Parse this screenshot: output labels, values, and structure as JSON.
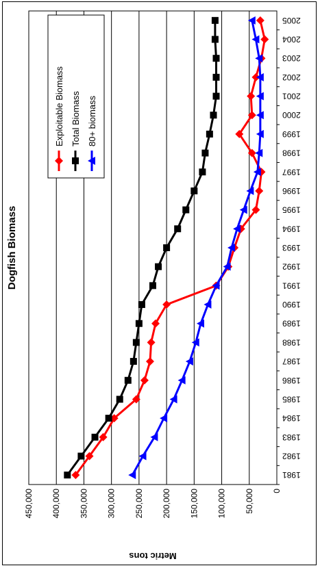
{
  "chart_data": {
    "type": "line",
    "title": "Dogfish Biomass",
    "ylabel": "Metric tons",
    "xlabel": "",
    "ylim": [
      0,
      450000
    ],
    "yticks": [
      "450,000",
      "400,000",
      "350,000",
      "300,000",
      "250,000",
      "200,000",
      "150,000",
      "100,000",
      "50,000",
      "0"
    ],
    "ytick_values": [
      450000,
      400000,
      350000,
      300000,
      250000,
      200000,
      150000,
      100000,
      50000,
      0
    ],
    "categories": [
      "1981",
      "1982",
      "1983",
      "1984",
      "1985",
      "1986",
      "1987",
      "1988",
      "1989",
      "1990",
      "1991",
      "1992",
      "1993",
      "1994",
      "1995",
      "1996",
      "1997",
      "1998",
      "1999",
      "2000",
      "2001",
      "2002",
      "2003",
      "2004",
      "2005"
    ],
    "grid": true,
    "legend_position": "top-right",
    "series": [
      {
        "name": "Exploitable Biomass",
        "color": "#ff0000",
        "marker": "diamond",
        "values": [
          365000,
          340000,
          315000,
          295000,
          255000,
          240000,
          230000,
          228000,
          220000,
          200000,
          110000,
          88000,
          77000,
          65000,
          38000,
          32000,
          28000,
          45000,
          68000,
          45000,
          47000,
          38000,
          28000,
          22000,
          30000
        ]
      },
      {
        "name": "Total Biomass",
        "color": "#000000",
        "marker": "square",
        "values": [
          380000,
          355000,
          330000,
          305000,
          285000,
          270000,
          260000,
          255000,
          250000,
          245000,
          225000,
          215000,
          200000,
          180000,
          165000,
          150000,
          135000,
          130000,
          122000,
          115000,
          110000,
          110000,
          110000,
          112000,
          112000
        ]
      },
      {
        "name": "80+ biomass",
        "color": "#0000ff",
        "marker": "triangle",
        "values": [
          262000,
          243000,
          222000,
          205000,
          187000,
          172000,
          158000,
          147000,
          138000,
          125000,
          110000,
          90000,
          82000,
          72000,
          60000,
          48000,
          35000,
          32000,
          30000,
          30000,
          30000,
          30000,
          32000,
          38000,
          45000
        ]
      }
    ]
  }
}
